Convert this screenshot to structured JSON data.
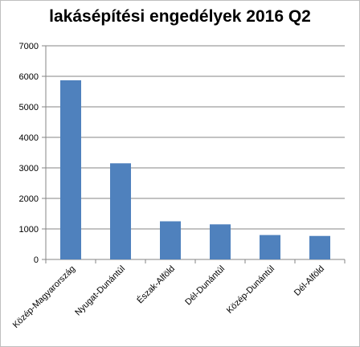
{
  "chart_data": {
    "type": "bar",
    "title": "lakásépítési engedélyek 2016 Q2",
    "categories": [
      "Közép-Magyarország",
      "Nyugat-Dunántúl",
      "Észak-Alföld",
      "Dél-Dunántúl",
      "Közép-Dunántúl",
      "Dél-Alföld"
    ],
    "values": [
      5870,
      3150,
      1250,
      1150,
      800,
      770
    ],
    "ylim": [
      0,
      7000
    ],
    "yticks": [
      0,
      1000,
      2000,
      3000,
      4000,
      5000,
      6000,
      7000
    ],
    "grid": true,
    "legend": "none",
    "bar_color": "#4f81bd"
  }
}
